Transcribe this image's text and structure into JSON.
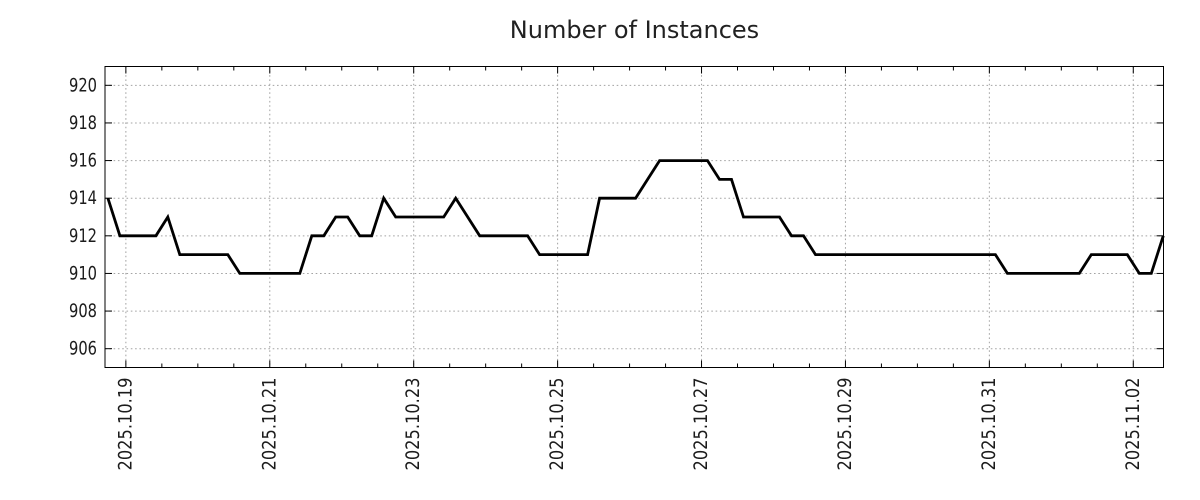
{
  "chart_data": {
    "type": "line",
    "title": "Number of Instances",
    "xlabel": "",
    "ylabel": "",
    "legend": "none",
    "grid": "dotted",
    "background_color": "#ffffff",
    "line_color": "#000000",
    "grid_color": "#a3a3a3",
    "tick_label_color": "#1c1c1c",
    "ylim": [
      905,
      921
    ],
    "y_ticks": [
      906,
      908,
      910,
      912,
      914,
      916,
      918,
      920
    ],
    "x_axis_note": "x measured in days relative to 2025-10-19 00:00",
    "xlim_days": [
      -0.29,
      14.42
    ],
    "x_major_ticks": [
      {
        "day": 0,
        "label": "2025.10.19"
      },
      {
        "day": 2,
        "label": "2025.10.21"
      },
      {
        "day": 4,
        "label": "2025.10.23"
      },
      {
        "day": 6,
        "label": "2025.10.25"
      },
      {
        "day": 8,
        "label": "2025.10.27"
      },
      {
        "day": 10,
        "label": "2025.10.29"
      },
      {
        "day": 12,
        "label": "2025.10.31"
      },
      {
        "day": 14,
        "label": "2025.11.02"
      }
    ],
    "x_gridline_days": [
      0,
      2,
      4,
      6,
      8,
      10,
      12,
      14
    ],
    "x_minor_tick_step_days": 0.5,
    "x_tick_label_rotation_deg": -90,
    "sample_start_day": -0.25,
    "sample_step_days": 0.1666667,
    "values": [
      914,
      912,
      912,
      912,
      912,
      913,
      911,
      911,
      911,
      911,
      911,
      910,
      910,
      910,
      910,
      910,
      910,
      912,
      912,
      913,
      913,
      912,
      912,
      914,
      913,
      913,
      913,
      913,
      913,
      914,
      913,
      912,
      912,
      912,
      912,
      912,
      911,
      911,
      911,
      911,
      911,
      914,
      914,
      914,
      914,
      915,
      916,
      916,
      916,
      916,
      916,
      915,
      915,
      913,
      913,
      913,
      913,
      912,
      912,
      911,
      911,
      911,
      911,
      911,
      911,
      911,
      911,
      911,
      911,
      911,
      911,
      911,
      911,
      911,
      911,
      910,
      910,
      910,
      910,
      910,
      910,
      910,
      911,
      911,
      911,
      911,
      910,
      910,
      912
    ]
  }
}
